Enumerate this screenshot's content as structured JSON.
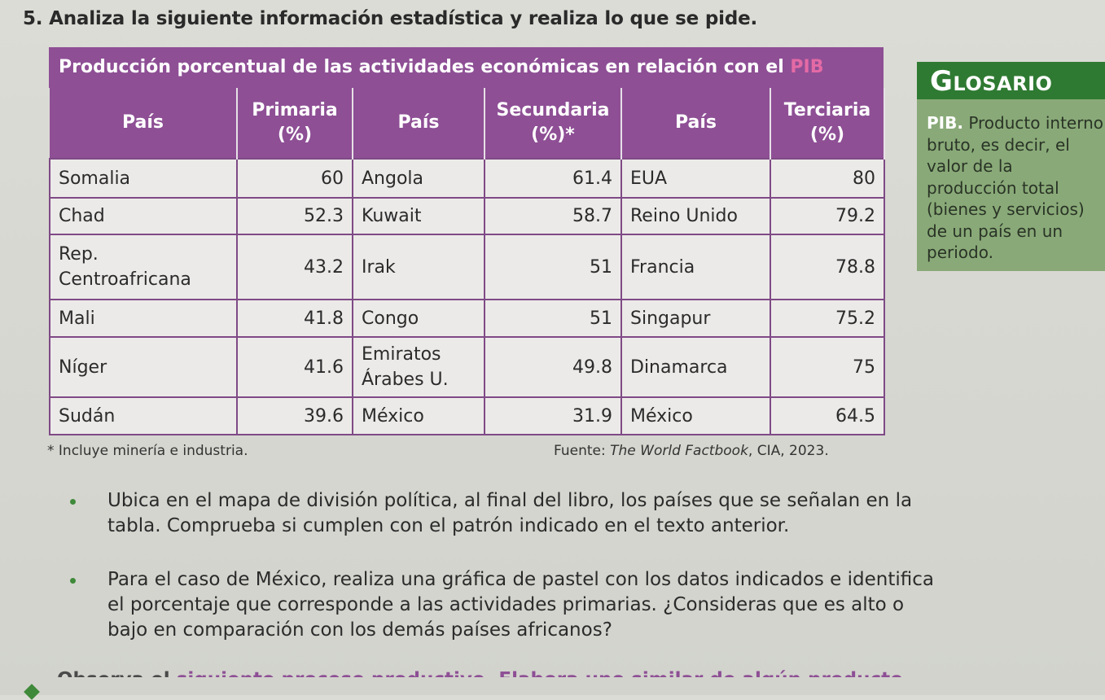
{
  "question": {
    "number": "5.",
    "text": "Analiza la siguiente información estadística y realiza lo que se pide."
  },
  "table": {
    "title_main": "Producción porcentual de las actividades económicas en relación con el",
    "title_highlight": "PIB",
    "headers": [
      "País",
      "Primaria (%)",
      "País",
      "Secundaria (%)*",
      "País",
      "Terciaria (%)"
    ],
    "rows": [
      [
        "Somalia",
        "60",
        "Angola",
        "61.4",
        "EUA",
        "80"
      ],
      [
        "Chad",
        "52.3",
        "Kuwait",
        "58.7",
        "Reino Unido",
        "79.2"
      ],
      [
        "Rep. Centroafricana",
        "43.2",
        "Irak",
        "51",
        "Francia",
        "78.8"
      ],
      [
        "Mali",
        "41.8",
        "Congo",
        "51",
        "Singapur",
        "75.2"
      ],
      [
        "Níger",
        "41.6",
        "Emiratos Árabes U.",
        "49.8",
        "Dinamarca",
        "75"
      ],
      [
        "Sudán",
        "39.6",
        "México",
        "31.9",
        "México",
        "64.5"
      ]
    ],
    "footnote": "* Incluye minería e industria.",
    "source_prefix": "Fuente: ",
    "source_italic": "The World Factbook",
    "source_suffix": ", CIA, 2023."
  },
  "glossary": {
    "heading_initial": "G",
    "heading_rest": "LOSARIO",
    "term": "PIB.",
    "definition": "Producto interno bruto, es decir, el valor de la producción total (bienes y servicios) de un país en un periodo."
  },
  "bullets": [
    "Ubica en el mapa de división política, al final del libro, los países que se señalan en la tabla. Comprueba si cumplen con el patrón indicado en el texto anterior.",
    "Para el caso de México, realiza una gráfica de pastel con los datos indicados e identifica el porcentaje que corresponde a las actividades primarias. ¿Consideras que es alto o bajo en comparación con los demás países africanos?"
  ],
  "next_line": {
    "part1": "Observa el",
    "part2": "siguiente proceso productivo. Elabora uno similar de algún producto"
  },
  "colors": {
    "table_purple": "#8e4f95",
    "glossary_green": "#2f7a32",
    "glossary_bg": "#89aa78"
  }
}
